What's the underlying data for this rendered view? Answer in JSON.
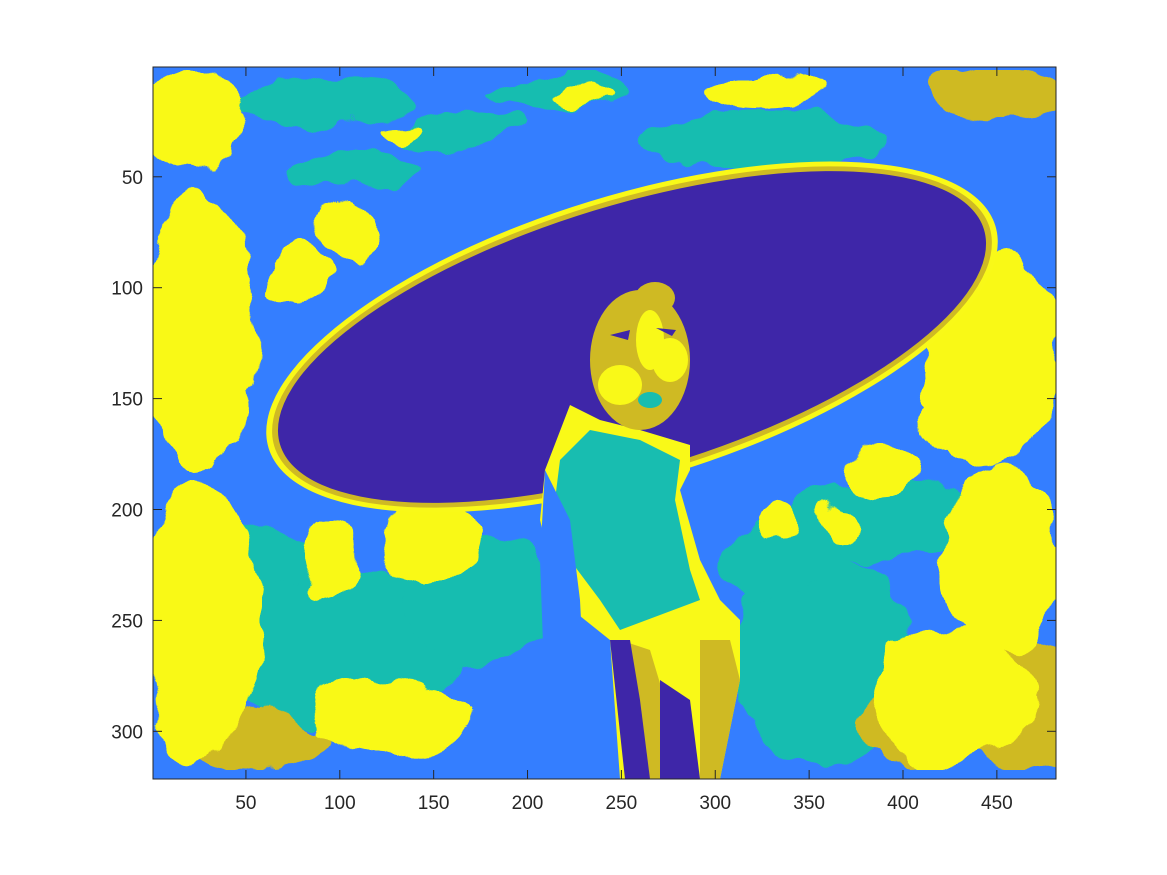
{
  "figure": {
    "image": {
      "description_colors": {
        "level_1": "#3E26A8",
        "level_2": "#347EFF",
        "level_3": "#18BDB0",
        "level_4": "#CFBA23",
        "level_5": "#F9F918"
      },
      "data_width": 481,
      "data_height": 321
    },
    "x_axis": {
      "ticks": [
        50,
        100,
        150,
        200,
        250,
        300,
        350,
        400,
        450
      ],
      "tick_labels": [
        "50",
        "100",
        "150",
        "200",
        "250",
        "300",
        "350",
        "400",
        "450"
      ],
      "range": [
        0.5,
        481.5
      ]
    },
    "y_axis": {
      "ticks": [
        50,
        100,
        150,
        200,
        250,
        300
      ],
      "tick_labels": [
        "50",
        "100",
        "150",
        "200",
        "250",
        "300"
      ],
      "range": [
        0.5,
        321.5
      ],
      "reversed": true
    },
    "axis_color": "#262626"
  }
}
